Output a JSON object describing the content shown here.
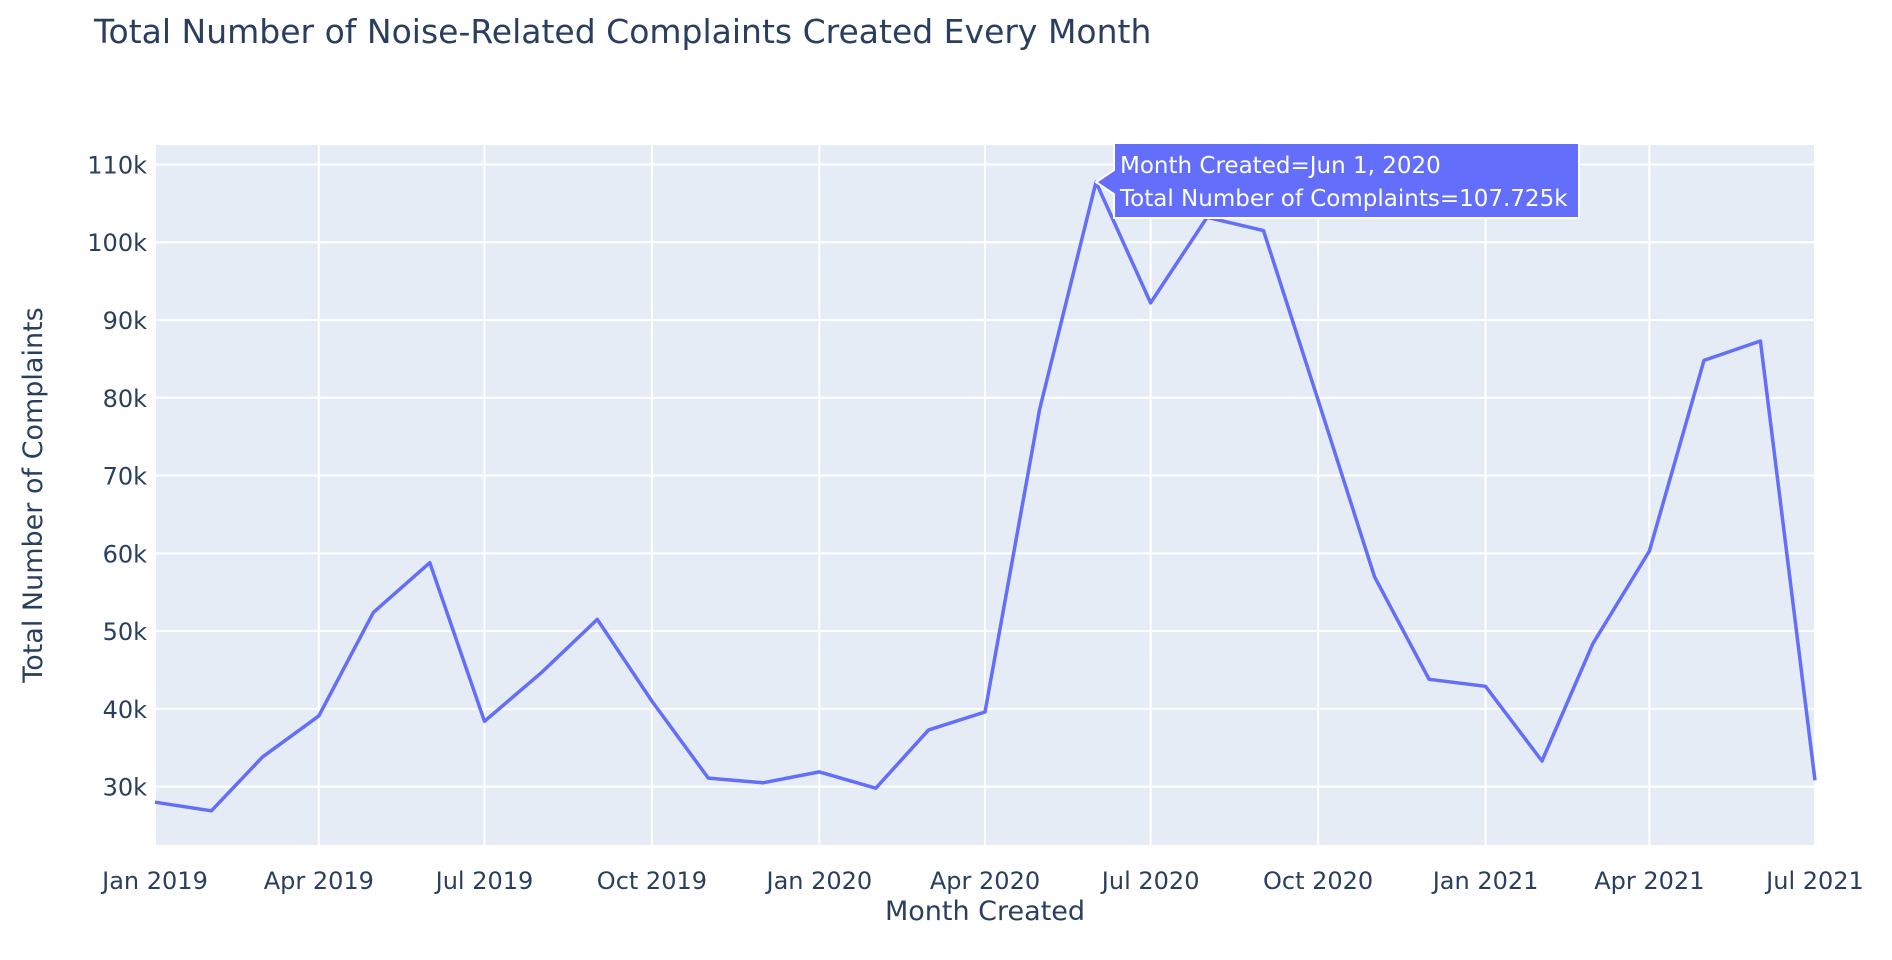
{
  "chart_data": {
    "type": "line",
    "title": "Total Number of Noise-Related Complaints Created Every Month",
    "xlabel": "Month Created",
    "ylabel": "Total Number of Complaints",
    "x": [
      "2019-01-01",
      "2019-02-01",
      "2019-03-01",
      "2019-04-01",
      "2019-05-01",
      "2019-06-01",
      "2019-07-01",
      "2019-08-01",
      "2019-09-01",
      "2019-10-01",
      "2019-11-01",
      "2019-12-01",
      "2020-01-01",
      "2020-02-01",
      "2020-03-01",
      "2020-04-01",
      "2020-05-01",
      "2020-06-01",
      "2020-07-01",
      "2020-08-01",
      "2020-09-01",
      "2020-10-01",
      "2020-11-01",
      "2020-12-01",
      "2021-01-01",
      "2021-02-01",
      "2021-03-01",
      "2021-04-01",
      "2021-05-01",
      "2021-06-01",
      "2021-07-01"
    ],
    "series": [
      {
        "values": [
          28000,
          26900,
          33800,
          39100,
          52400,
          58800,
          38400,
          44600,
          51500,
          41000,
          31100,
          30500,
          31900,
          29800,
          37300,
          39600,
          78500,
          107725,
          92200,
          103200,
          101500,
          79700,
          57000,
          43800,
          42900,
          33300,
          48400,
          60300,
          84800,
          87300,
          30800
        ]
      }
    ],
    "x_ticks": [
      "Jan 2019",
      "Apr 2019",
      "Jul 2019",
      "Oct 2019",
      "Jan 2020",
      "Apr 2020",
      "Jul 2020",
      "Oct 2020",
      "Jan 2021",
      "Apr 2021",
      "Jul 2021"
    ],
    "y_ticks": [
      "30k",
      "40k",
      "50k",
      "60k",
      "70k",
      "80k",
      "90k",
      "100k",
      "110k"
    ],
    "y_tick_values": [
      30000,
      40000,
      50000,
      60000,
      70000,
      80000,
      90000,
      100000,
      110000
    ],
    "ylim": [
      22500,
      112500
    ],
    "xlim": [
      "2019-01-01",
      "2021-07-01"
    ],
    "grid": true,
    "colors": {
      "line": "#636efa",
      "plot_bg": "#e5ecf6",
      "grid": "#ffffff",
      "text": "#2a3f5f"
    },
    "hover_label": {
      "index": 17,
      "line1": "Month Created=Jun 1, 2020",
      "line2": "Total Number of Complaints=107.725k"
    }
  }
}
